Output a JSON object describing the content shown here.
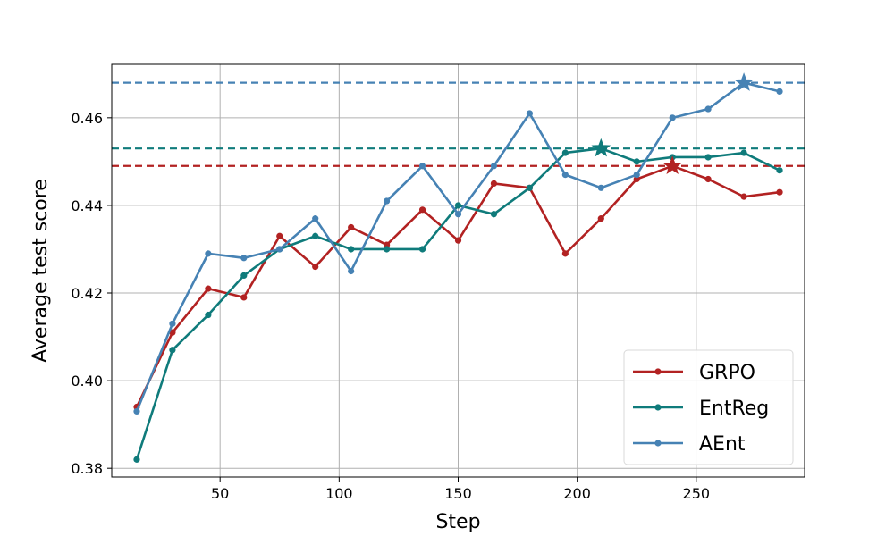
{
  "chart_data": {
    "type": "line",
    "xlabel": "Step",
    "ylabel": "Average test score",
    "xlim": [
      4.5,
      295.5
    ],
    "ylim": [
      0.378,
      0.4722
    ],
    "x_ticks": [
      50,
      100,
      150,
      200,
      250
    ],
    "y_ticks": [
      0.38,
      0.4,
      0.42,
      0.44,
      0.46
    ],
    "y_tick_labels": [
      "0.38",
      "0.40",
      "0.42",
      "0.44",
      "0.46"
    ],
    "x_tick_labels": [
      "50",
      "100",
      "150",
      "200",
      "250"
    ],
    "grid": true,
    "legend_position": "bottom-right",
    "x": [
      15,
      30,
      45,
      60,
      75,
      90,
      105,
      120,
      135,
      150,
      165,
      180,
      195,
      210,
      225,
      240,
      255,
      270,
      285
    ],
    "series": [
      {
        "name": "GRPO",
        "color": "#b22222",
        "values": [
          0.394,
          0.411,
          0.421,
          0.419,
          0.433,
          0.426,
          0.435,
          0.431,
          0.439,
          0.432,
          0.445,
          0.444,
          0.429,
          0.437,
          0.446,
          0.449,
          0.446,
          0.442,
          0.443
        ],
        "best": {
          "x": 240,
          "y": 0.449
        }
      },
      {
        "name": "EntReg",
        "color": "#0f7b7b",
        "values": [
          0.382,
          0.407,
          0.415,
          0.424,
          0.43,
          0.433,
          0.43,
          0.43,
          0.43,
          0.44,
          0.438,
          0.444,
          0.452,
          0.453,
          0.45,
          0.451,
          0.451,
          0.452,
          0.448
        ],
        "best": {
          "x": 210,
          "y": 0.453
        }
      },
      {
        "name": "AEnt",
        "color": "#4682b4",
        "values": [
          0.393,
          0.413,
          0.429,
          0.428,
          0.43,
          0.437,
          0.425,
          0.441,
          0.449,
          0.438,
          0.449,
          0.461,
          0.447,
          0.444,
          0.447,
          0.46,
          0.462,
          0.468,
          0.466
        ],
        "best": {
          "x": 270,
          "y": 0.468
        }
      }
    ]
  }
}
